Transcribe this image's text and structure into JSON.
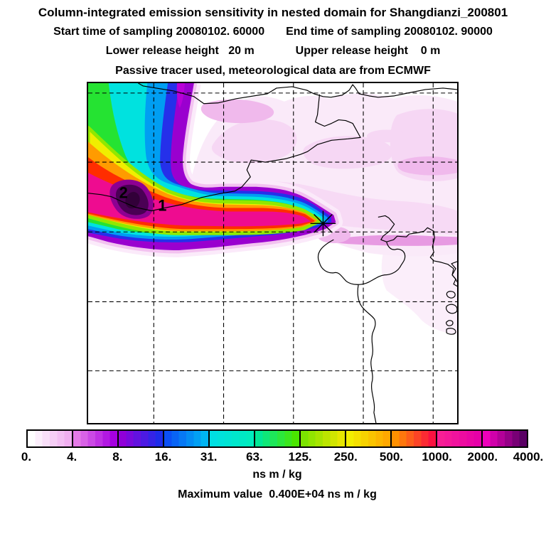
{
  "header": {
    "title": "Column-integrated emission sensitivity in nested domain for Shangdianzi_200801",
    "start_time": "Start time of sampling 20080102. 60000",
    "end_time": "End time of sampling 20080102. 90000",
    "lower_release": "Lower release height   20 m",
    "upper_release": "Upper release height    0 m",
    "tracer_line": "Passive tracer used, meteorological data are from ECMWF"
  },
  "map": {
    "region_labels": [
      {
        "text": "2",
        "meaning": "secondary maximum core label"
      },
      {
        "text": "1",
        "meaning": "plume core label"
      }
    ],
    "marker": "source-asterisk"
  },
  "colorbar": {
    "tick_labels": [
      "0.",
      "4.",
      "8.",
      "16.",
      "31.",
      "63.",
      "125.",
      "250.",
      "500.",
      "1000.",
      "2000.",
      "4000."
    ],
    "units": "ns m / kg",
    "segments": [
      {
        "from": "#ffffff",
        "to": "#f0aef0"
      },
      {
        "from": "#e57ae8",
        "to": "#a500e0"
      },
      {
        "from": "#9000d8",
        "to": "#1e2cea"
      },
      {
        "from": "#0b50f5",
        "to": "#00b4f2"
      },
      {
        "from": "#00dfe2",
        "to": "#00ecbe"
      },
      {
        "from": "#00e896",
        "to": "#4ae600"
      },
      {
        "from": "#7ce300",
        "to": "#e6e600"
      },
      {
        "from": "#f2ee00",
        "to": "#ffa800"
      },
      {
        "from": "#ff9000",
        "to": "#fa1240"
      },
      {
        "from": "#f71f95",
        "to": "#e600a8"
      },
      {
        "from": "#ee00bb",
        "to": "#5a0064"
      }
    ]
  },
  "plume": {
    "halo_outer": "#fbeafa",
    "halo": "#f3c2f0",
    "purple": "#9a00cf",
    "blue": "#2530ea",
    "cyanblue": "#009ef2",
    "cyan": "#00e2df",
    "green": "#25e332",
    "yellowgreen": "#90e800",
    "yellow": "#f0ee00",
    "orange": "#ff9b00",
    "red": "#ff2d00",
    "magenta": "#ee0c90",
    "core_ring": "#8d0092",
    "core": "#4a0054",
    "core_dark": "#320039",
    "streak": "#b800d8",
    "wash_pale": "#faeaf9",
    "wash_light": "#f6d7f4",
    "wash_med": "#f0b9ec",
    "wash_dark": "#e79ae2"
  },
  "footer": {
    "max_label": "Maximum value  0.400E+04 ns m / kg"
  },
  "chart_data": {
    "type": "heatmap",
    "title": "Column-integrated emission sensitivity in nested domain for Shangdianzi_200801",
    "subtitle": [
      "Start time of sampling 20080102. 60000",
      "End time of sampling 20080102. 90000",
      "Lower release height 20 m",
      "Upper release height 0 m",
      "Passive tracer used, meteorological data are from ECMWF"
    ],
    "units": "ns m / kg",
    "colorbar_levels": [
      0,
      4,
      8,
      16,
      31,
      63,
      125,
      250,
      500,
      1000,
      2000,
      4000
    ],
    "maximum_value_label": "0.400E+04",
    "maximum_value": 4000,
    "legend_position": "bottom horizontal colorbar",
    "grid": "dashed graticule, 5 vertical and 5 horizontal lines",
    "annotations": [
      "2 at dark maximum core",
      "1 on plume core east of 2",
      "asterisk source marker at eastern plume tip"
    ],
    "description": "L-shaped emission-sensitivity plume entering from NW corner of nested domain, bending east toward the receptor asterisk; concentration bands decrease outward magenta>red>orange>yellow>green>cyan>blue>purple; pale pink 0-4 wash over NE half; North China / Bohai Sea coastlines and borders overlaid"
  }
}
